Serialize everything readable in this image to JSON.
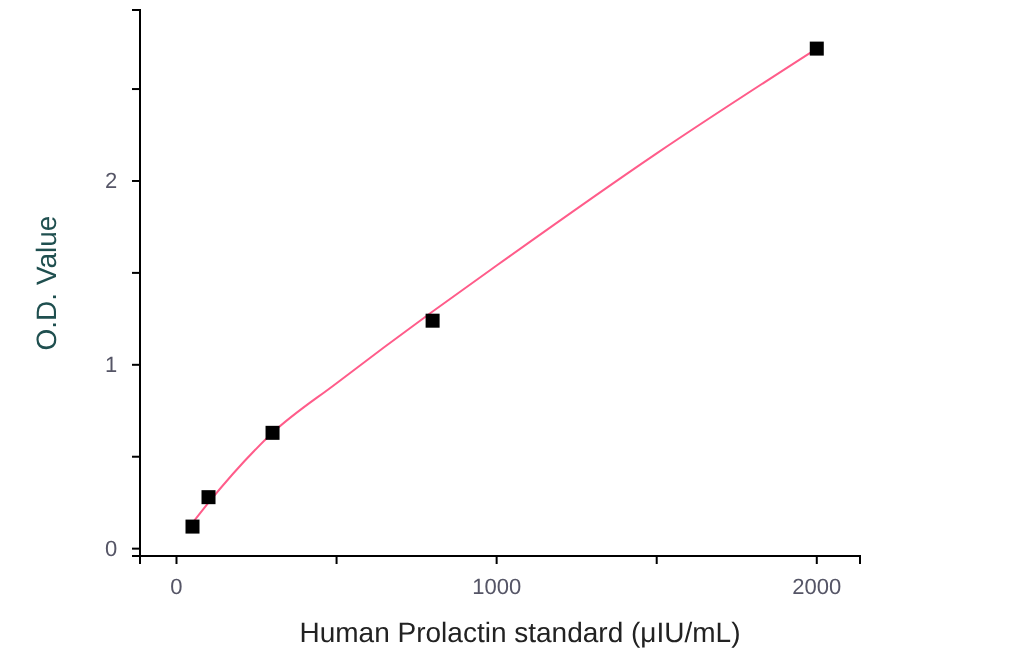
{
  "chart_data": {
    "type": "scatter",
    "xlabel": "Human Prolactin standard (μIU/mL)",
    "ylabel": "O.D. Value",
    "xlim": [
      -114,
      2135
    ],
    "ylim": [
      -0.04,
      2.93
    ],
    "xticks": [
      0,
      {
        "value": 500,
        "label": null
      },
      1000,
      {
        "value": 1500,
        "label": null
      },
      2000
    ],
    "yticks": [
      0,
      {
        "value": 0.5,
        "label": null
      },
      1,
      {
        "value": 1.5,
        "label": null
      },
      2,
      {
        "value": 2.5,
        "label": null
      }
    ],
    "grid": false,
    "series": [
      {
        "type": "line",
        "color": "#ff5c8a",
        "marker": "none",
        "x": [
          50,
          100,
          300,
          500,
          800,
          1000,
          1500,
          2000
        ],
        "values": [
          0.14,
          0.25,
          0.63,
          0.9,
          1.29,
          1.54,
          2.15,
          2.72
        ]
      },
      {
        "color": "#000000",
        "marker": "square",
        "x": [
          50,
          100,
          300,
          800,
          2000
        ],
        "values": [
          0.12,
          0.28,
          0.63,
          1.24,
          2.72
        ]
      }
    ]
  }
}
